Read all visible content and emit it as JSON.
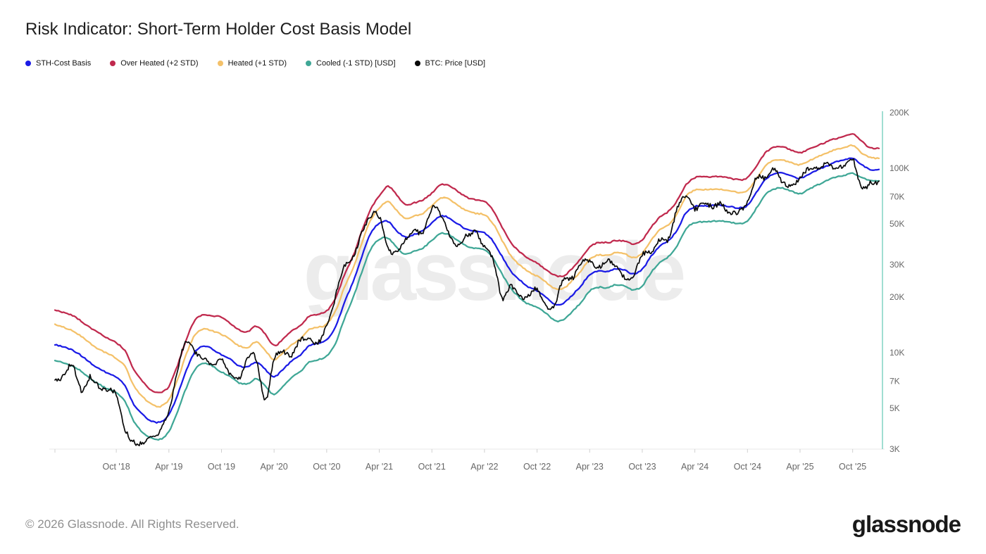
{
  "title": "Risk Indicator: Short-Term Holder Cost Basis Model",
  "watermark": "glassnode",
  "footer": {
    "copyright": "© 2026 Glassnode. All Rights Reserved.",
    "brand": "glassnode"
  },
  "colors": {
    "sth_cost_basis": "#1b1be6",
    "over_heated": "#c0294d",
    "heated": "#f4c169",
    "cooled": "#3fa796",
    "btc_price": "#0a0a0a",
    "right_axis_line": "#62c9b5",
    "bottom_axis_line": "#e7e7e7",
    "tick_mark": "#d0d0d0",
    "axis_text": "#666666",
    "watermark": "#ececec"
  },
  "chart_data": {
    "type": "line",
    "title": "Risk Indicator: Short-Term Holder Cost Basis Model",
    "y_scale": "log",
    "y_unit": "USD",
    "values_unit": "thousand USD",
    "y_min": 3,
    "y_max": 200,
    "grid": "off",
    "legend_position": "top-left",
    "months_start": "2018-03",
    "months_end": "2026-01",
    "y_ticks": [
      {
        "label": "200K",
        "value": 200
      },
      {
        "label": "100K",
        "value": 100
      },
      {
        "label": "70K",
        "value": 70
      },
      {
        "label": "50K",
        "value": 50
      },
      {
        "label": "30K",
        "value": 30
      },
      {
        "label": "20K",
        "value": 20
      },
      {
        "label": "10K",
        "value": 10
      },
      {
        "label": "7K",
        "value": 7
      },
      {
        "label": "5K",
        "value": 5
      },
      {
        "label": "3K",
        "value": 3
      }
    ],
    "x_ticks": [
      {
        "label": "Oct '18",
        "month": "2018-10"
      },
      {
        "label": "Apr '19",
        "month": "2019-04"
      },
      {
        "label": "Oct '19",
        "month": "2019-10"
      },
      {
        "label": "Apr '20",
        "month": "2020-04"
      },
      {
        "label": "Oct '20",
        "month": "2020-10"
      },
      {
        "label": "Apr '21",
        "month": "2021-04"
      },
      {
        "label": "Oct '21",
        "month": "2021-10"
      },
      {
        "label": "Apr '22",
        "month": "2022-04"
      },
      {
        "label": "Oct '22",
        "month": "2022-10"
      },
      {
        "label": "Apr '23",
        "month": "2023-04"
      },
      {
        "label": "Oct '23",
        "month": "2023-10"
      },
      {
        "label": "Apr '24",
        "month": "2024-04"
      },
      {
        "label": "Oct '24",
        "month": "2024-10"
      },
      {
        "label": "Apr '25",
        "month": "2025-04"
      },
      {
        "label": "Oct '25",
        "month": "2025-10"
      }
    ],
    "series": [
      {
        "name": "STH-Cost Basis",
        "color": "#1b1be6",
        "values": [
          11.0,
          10.8,
          10.3,
          9.6,
          8.8,
          8.2,
          7.7,
          7.3,
          6.6,
          5.2,
          4.6,
          4.25,
          4.2,
          4.6,
          5.9,
          8.0,
          10.1,
          10.8,
          10.4,
          9.7,
          9.2,
          8.5,
          8.4,
          8.9,
          8.1,
          7.4,
          8.1,
          9.0,
          9.7,
          10.9,
          11.2,
          11.7,
          13.7,
          18.5,
          24.0,
          33.0,
          44.0,
          50.0,
          51.0,
          45.5,
          42.0,
          43.5,
          45.5,
          50.0,
          54.5,
          53.5,
          49.5,
          46.5,
          45.3,
          44.5,
          40.0,
          33.0,
          27.5,
          24.5,
          22.5,
          21.5,
          20.0,
          18.3,
          18.5,
          20.5,
          23.0,
          26.5,
          27.8,
          27.8,
          28.8,
          28.3,
          27.0,
          28.5,
          33.5,
          38.0,
          41.0,
          47.0,
          58.0,
          62.5,
          63.0,
          63.5,
          63.5,
          62.5,
          61.5,
          63.5,
          74.0,
          87.0,
          94.0,
          94.5,
          91.0,
          88.5,
          93.0,
          98.0,
          103.0,
          108.0,
          110.5,
          113.5,
          104.0,
          98.0,
          97.0
        ]
      },
      {
        "name": "Over Heated (+2 STD)",
        "color": "#c0294d",
        "values": [
          17.0,
          16.6,
          16.0,
          14.9,
          13.7,
          12.8,
          12.0,
          11.3,
          10.2,
          8.1,
          7.0,
          6.3,
          6.1,
          6.6,
          8.6,
          11.9,
          15.1,
          16.1,
          15.8,
          15.7,
          14.4,
          13.3,
          13.0,
          13.9,
          12.6,
          11.0,
          11.9,
          13.2,
          14.2,
          15.9,
          16.3,
          17.0,
          19.9,
          26.5,
          33.5,
          45.5,
          60.0,
          71.0,
          80.0,
          72.0,
          64.0,
          65.5,
          68.0,
          74.0,
          82.0,
          81.0,
          75.0,
          70.0,
          68.0,
          66.5,
          59.5,
          48.5,
          40.0,
          35.5,
          32.5,
          30.5,
          28.3,
          26.3,
          26.0,
          28.5,
          32.5,
          37.5,
          39.5,
          39.5,
          40.5,
          40.0,
          38.5,
          40.5,
          47.5,
          54.0,
          58.0,
          66.5,
          81.0,
          88.0,
          89.0,
          89.5,
          89.0,
          87.5,
          86.0,
          88.0,
          101.0,
          119.0,
          128.0,
          129.0,
          124.0,
          120.0,
          125.5,
          131.0,
          137.5,
          143.5,
          147.0,
          151.5,
          139.0,
          128.0,
          126.5
        ]
      },
      {
        "name": "Heated (+1 STD)",
        "color": "#f4c169",
        "values": [
          14.2,
          13.8,
          13.2,
          12.3,
          11.3,
          10.5,
          9.9,
          9.3,
          8.4,
          6.6,
          5.8,
          5.3,
          5.15,
          5.6,
          7.2,
          9.9,
          12.6,
          13.4,
          13.1,
          12.6,
          11.8,
          10.9,
          10.7,
          11.4,
          10.3,
          9.2,
          10.0,
          11.1,
          11.9,
          13.4,
          13.7,
          14.3,
          16.8,
          22.4,
          28.6,
          39.0,
          52.0,
          60.5,
          65.5,
          58.5,
          53.0,
          54.5,
          56.5,
          62.0,
          68.0,
          67.0,
          62.0,
          58.0,
          56.5,
          55.5,
          49.5,
          40.5,
          33.5,
          29.8,
          27.3,
          25.8,
          24.0,
          22.1,
          22.1,
          24.3,
          27.5,
          31.8,
          33.4,
          33.4,
          34.4,
          33.9,
          32.5,
          34.3,
          40.2,
          45.7,
          49.2,
          56.4,
          69.6,
          75.0,
          75.6,
          76.2,
          76.2,
          75.0,
          73.5,
          75.5,
          87.0,
          102.0,
          110.0,
          110.5,
          106.5,
          103.5,
          108.5,
          114.0,
          119.5,
          125.0,
          128.0,
          131.5,
          120.5,
          113.5,
          112.5
        ]
      },
      {
        "name": "Cooled (-1 STD) [USD]",
        "color": "#3fa796",
        "values": [
          9.0,
          8.8,
          8.4,
          7.9,
          7.2,
          6.7,
          6.3,
          6.0,
          5.4,
          4.2,
          3.7,
          3.45,
          3.4,
          3.75,
          4.8,
          6.5,
          8.2,
          8.8,
          8.5,
          7.9,
          7.5,
          6.9,
          6.85,
          7.3,
          6.6,
          6.0,
          6.6,
          7.35,
          7.9,
          8.9,
          9.15,
          9.55,
          11.2,
          15.1,
          19.6,
          27.0,
          36.0,
          40.9,
          41.7,
          37.2,
          34.4,
          35.6,
          37.2,
          40.9,
          44.6,
          43.8,
          40.5,
          38.0,
          37.1,
          36.4,
          32.7,
          27.0,
          22.5,
          20.0,
          18.4,
          17.6,
          16.4,
          15.0,
          15.1,
          16.8,
          18.8,
          21.7,
          22.7,
          22.7,
          23.6,
          23.1,
          22.1,
          23.3,
          27.4,
          31.1,
          33.6,
          38.5,
          47.5,
          51.2,
          51.6,
          52.0,
          52.0,
          51.2,
          50.4,
          52.0,
          60.6,
          71.3,
          77.0,
          77.5,
          74.6,
          72.5,
          76.2,
          80.3,
          84.4,
          88.5,
          90.6,
          93.0,
          88.0,
          85.0,
          84.5
        ]
      },
      {
        "name": "BTC: Price [USD]",
        "color": "#0a0a0a",
        "values": [
          6.9,
          7.6,
          8.7,
          6.4,
          7.7,
          7.0,
          6.6,
          6.4,
          4.0,
          3.5,
          3.45,
          3.85,
          4.1,
          5.3,
          8.3,
          12.2,
          10.1,
          9.6,
          8.3,
          9.2,
          7.6,
          7.2,
          9.3,
          8.6,
          5.2,
          8.6,
          9.4,
          9.1,
          11.3,
          11.7,
          10.8,
          13.8,
          19.7,
          29.0,
          33.1,
          45.2,
          58.9,
          57.8,
          37.3,
          35.0,
          41.5,
          47.1,
          43.8,
          61.3,
          57.0,
          46.2,
          38.5,
          43.2,
          45.5,
          37.7,
          31.8,
          19.9,
          23.3,
          20.0,
          19.4,
          20.5,
          16.2,
          16.5,
          23.1,
          23.2,
          28.5,
          29.3,
          27.2,
          30.5,
          29.2,
          26.0,
          26.9,
          34.7,
          37.7,
          42.3,
          42.6,
          61.2,
          71.3,
          60.6,
          67.5,
          62.7,
          64.6,
          59.1,
          63.3,
          70.2,
          96.4,
          93.4,
          102.1,
          84.4,
          82.5,
          94.2,
          104.6,
          107.1,
          115.8,
          108.2,
          114.1,
          122.0,
          86.0,
          89.5,
          89.0
        ]
      }
    ]
  }
}
